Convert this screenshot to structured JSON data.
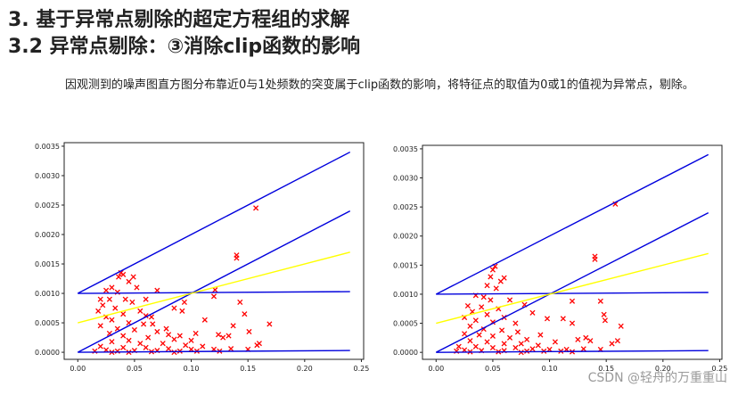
{
  "heading": {
    "line1": "3.   基于异常点剔除的超定方程组的求解",
    "line2": "3.2 异常点剔除：③消除clip函数的影响"
  },
  "paragraph": {
    "part1": "因观测到的噪声图直方图分布靠近0与1处频数的突变属于clip函数的影响，将",
    "part2": "特征点的取值为0或1的值视为异常点，剔除。"
  },
  "watermark": "CSDN @轻舟的万重重山",
  "chart_data": [
    {
      "type": "scatter",
      "title": "",
      "xlabel": "",
      "ylabel": "",
      "xlim": [
        -0.012,
        0.252
      ],
      "ylim": [
        -0.00012,
        0.00356
      ],
      "xticks": [
        "0.00",
        "0.05",
        "0.10",
        "0.15",
        "0.20",
        "0.25"
      ],
      "yticks": [
        "0.0000",
        "0.0005",
        "0.0010",
        "0.0015",
        "0.0020",
        "0.0025",
        "0.0030",
        "0.0035"
      ],
      "lines": [
        {
          "name": "upper",
          "color": "#0000dd",
          "x": [
            0.0,
            0.24
          ],
          "y": [
            0.001,
            0.0034
          ]
        },
        {
          "name": "middle",
          "color": "#0000dd",
          "x": [
            0.0,
            0.24
          ],
          "y": [
            0.0,
            0.0024
          ]
        },
        {
          "name": "horizontal-upper",
          "color": "#0000dd",
          "x": [
            0.0,
            0.24
          ],
          "y": [
            0.001,
            0.00103
          ]
        },
        {
          "name": "baseline",
          "color": "#0000dd",
          "x": [
            0.0,
            0.24
          ],
          "y": [
            0.0,
            3e-05
          ]
        },
        {
          "name": "fit",
          "color": "#ffff00",
          "x": [
            0.0,
            0.24
          ],
          "y": [
            0.0005,
            0.0017
          ]
        }
      ],
      "points": [
        [
          0.038,
          0.00135
        ],
        [
          0.04,
          0.00132
        ],
        [
          0.036,
          0.00128
        ],
        [
          0.049,
          0.00128
        ],
        [
          0.045,
          0.0012
        ],
        [
          0.052,
          0.0011
        ],
        [
          0.03,
          0.0011
        ],
        [
          0.025,
          0.00105
        ],
        [
          0.035,
          0.00102
        ],
        [
          0.07,
          0.00105
        ],
        [
          0.02,
          0.0009
        ],
        [
          0.028,
          0.0009
        ],
        [
          0.042,
          0.0009
        ],
        [
          0.06,
          0.0009
        ],
        [
          0.048,
          0.00085
        ],
        [
          0.022,
          0.0008
        ],
        [
          0.033,
          0.00075
        ],
        [
          0.055,
          0.0007
        ],
        [
          0.018,
          0.0007
        ],
        [
          0.04,
          0.00065
        ],
        [
          0.065,
          0.0006
        ],
        [
          0.025,
          0.0006
        ],
        [
          0.03,
          0.00055
        ],
        [
          0.045,
          0.0005
        ],
        [
          0.058,
          0.00048
        ],
        [
          0.02,
          0.00045
        ],
        [
          0.035,
          0.0004
        ],
        [
          0.05,
          0.00038
        ],
        [
          0.07,
          0.00035
        ],
        [
          0.08,
          0.0003
        ],
        [
          0.028,
          0.00032
        ],
        [
          0.04,
          0.00028
        ],
        [
          0.062,
          0.00025
        ],
        [
          0.085,
          0.00022
        ],
        [
          0.045,
          0.0002
        ],
        [
          0.03,
          0.00018
        ],
        [
          0.055,
          0.00015
        ],
        [
          0.075,
          0.00015
        ],
        [
          0.095,
          0.00012
        ],
        [
          0.11,
          0.0001
        ],
        [
          0.02,
          0.0001
        ],
        [
          0.04,
          8e-05
        ],
        [
          0.06,
          8e-05
        ],
        [
          0.08,
          6e-05
        ],
        [
          0.1,
          5e-05
        ],
        [
          0.12,
          5e-05
        ],
        [
          0.135,
          6e-05
        ],
        [
          0.15,
          5e-05
        ],
        [
          0.025,
          4e-05
        ],
        [
          0.05,
          3e-05
        ],
        [
          0.07,
          3e-05
        ],
        [
          0.09,
          2e-05
        ],
        [
          0.015,
          2e-05
        ],
        [
          0.035,
          2e-05
        ],
        [
          0.065,
          1e-05
        ],
        [
          0.105,
          2e-05
        ],
        [
          0.125,
          2e-05
        ],
        [
          0.045,
          0.0
        ],
        [
          0.085,
          0.0
        ],
        [
          0.03,
          0.0
        ],
        [
          0.121,
          0.00106
        ],
        [
          0.12,
          0.00095
        ],
        [
          0.094,
          0.00085
        ],
        [
          0.092,
          0.0007
        ],
        [
          0.085,
          0.00075
        ],
        [
          0.14,
          0.00165
        ],
        [
          0.14,
          0.0016
        ],
        [
          0.157,
          0.00245
        ],
        [
          0.143,
          0.00085
        ],
        [
          0.147,
          0.00065
        ],
        [
          0.137,
          0.00045
        ],
        [
          0.169,
          0.00048
        ],
        [
          0.151,
          0.00035
        ],
        [
          0.133,
          0.00028
        ],
        [
          0.112,
          0.00055
        ],
        [
          0.16,
          0.00015
        ],
        [
          0.158,
          0.00012
        ],
        [
          0.104,
          0.00032
        ],
        [
          0.124,
          0.0003
        ],
        [
          0.128,
          0.00025
        ],
        [
          0.1,
          0.0002
        ],
        [
          0.09,
          0.00028
        ],
        [
          0.078,
          0.0004
        ],
        [
          0.066,
          0.00048
        ],
        [
          0.06,
          0.00062
        ]
      ]
    },
    {
      "type": "scatter",
      "title": "",
      "xlabel": "",
      "ylabel": "",
      "xlim": [
        -0.012,
        0.252
      ],
      "ylim": [
        -0.00012,
        0.00356
      ],
      "xticks": [
        "0.00",
        "0.05",
        "0.10",
        "0.15",
        "0.20",
        "0.25"
      ],
      "yticks": [
        "0.0000",
        "0.0005",
        "0.0010",
        "0.0015",
        "0.0020",
        "0.0025",
        "0.0030",
        "0.0035"
      ],
      "lines": [
        {
          "name": "upper",
          "color": "#0000dd",
          "x": [
            0.0,
            0.24
          ],
          "y": [
            0.001,
            0.0034
          ]
        },
        {
          "name": "middle",
          "color": "#0000dd",
          "x": [
            0.0,
            0.24
          ],
          "y": [
            0.0,
            0.0024
          ]
        },
        {
          "name": "horizontal-upper",
          "color": "#0000dd",
          "x": [
            0.0,
            0.24
          ],
          "y": [
            0.001,
            0.00103
          ]
        },
        {
          "name": "baseline",
          "color": "#0000dd",
          "x": [
            0.0,
            0.24
          ],
          "y": [
            0.0,
            3e-05
          ]
        },
        {
          "name": "fit",
          "color": "#ffff00",
          "x": [
            0.0,
            0.24
          ],
          "y": [
            0.0005,
            0.0017
          ]
        }
      ],
      "points": [
        [
          0.052,
          0.00148
        ],
        [
          0.05,
          0.00142
        ],
        [
          0.048,
          0.0013
        ],
        [
          0.06,
          0.00128
        ],
        [
          0.057,
          0.00122
        ],
        [
          0.045,
          0.00115
        ],
        [
          0.053,
          0.0011
        ],
        [
          0.042,
          0.00095
        ],
        [
          0.035,
          0.00098
        ],
        [
          0.048,
          0.0009
        ],
        [
          0.065,
          0.0009
        ],
        [
          0.028,
          0.0008
        ],
        [
          0.04,
          0.00078
        ],
        [
          0.055,
          0.00075
        ],
        [
          0.032,
          0.0007
        ],
        [
          0.045,
          0.00065
        ],
        [
          0.06,
          0.0006
        ],
        [
          0.025,
          0.0006
        ],
        [
          0.035,
          0.00055
        ],
        [
          0.05,
          0.00052
        ],
        [
          0.07,
          0.0005
        ],
        [
          0.03,
          0.00045
        ],
        [
          0.042,
          0.0004
        ],
        [
          0.058,
          0.00038
        ],
        [
          0.072,
          0.00035
        ],
        [
          0.025,
          0.00032
        ],
        [
          0.038,
          0.0003
        ],
        [
          0.05,
          0.00028
        ],
        [
          0.065,
          0.00025
        ],
        [
          0.08,
          0.00022
        ],
        [
          0.03,
          0.0002
        ],
        [
          0.045,
          0.00018
        ],
        [
          0.06,
          0.00015
        ],
        [
          0.075,
          0.00015
        ],
        [
          0.09,
          0.00012
        ],
        [
          0.02,
          0.0001
        ],
        [
          0.035,
          0.0001
        ],
        [
          0.05,
          8e-05
        ],
        [
          0.07,
          8e-05
        ],
        [
          0.085,
          6e-05
        ],
        [
          0.1,
          5e-05
        ],
        [
          0.115,
          5e-05
        ],
        [
          0.13,
          6e-05
        ],
        [
          0.145,
          5e-05
        ],
        [
          0.025,
          4e-05
        ],
        [
          0.04,
          3e-05
        ],
        [
          0.06,
          3e-05
        ],
        [
          0.08,
          2e-05
        ],
        [
          0.095,
          2e-05
        ],
        [
          0.11,
          2e-05
        ],
        [
          0.018,
          2e-05
        ],
        [
          0.03,
          1e-05
        ],
        [
          0.055,
          1e-05
        ],
        [
          0.075,
          0.0
        ],
        [
          0.12,
          1e-05
        ],
        [
          0.078,
          0.00082
        ],
        [
          0.085,
          0.00068
        ],
        [
          0.098,
          0.00058
        ],
        [
          0.12,
          0.00088
        ],
        [
          0.112,
          0.00058
        ],
        [
          0.12,
          0.0005
        ],
        [
          0.14,
          0.00165
        ],
        [
          0.14,
          0.0016
        ],
        [
          0.158,
          0.00255
        ],
        [
          0.145,
          0.00088
        ],
        [
          0.148,
          0.00065
        ],
        [
          0.149,
          0.00055
        ],
        [
          0.163,
          0.00045
        ],
        [
          0.16,
          0.0002
        ],
        [
          0.155,
          0.00015
        ],
        [
          0.132,
          0.00025
        ],
        [
          0.136,
          0.0002
        ],
        [
          0.125,
          0.00022
        ],
        [
          0.105,
          0.00018
        ],
        [
          0.092,
          0.0003
        ]
      ]
    }
  ]
}
